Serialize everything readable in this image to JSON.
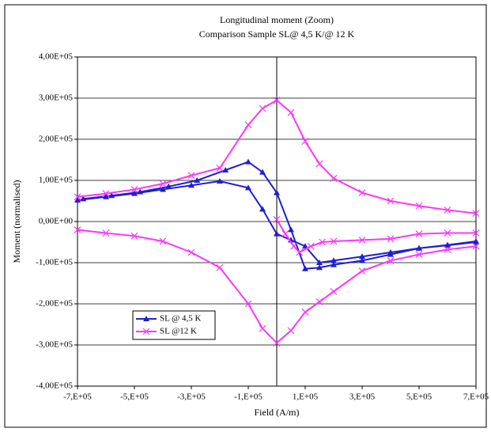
{
  "chart_data": {
    "type": "line",
    "title": "Longitudinal moment (Zoom)",
    "subtitle": "Comparison Sample SL@ 4,5 K/@ 12 K",
    "x_label": "Field (A/m)",
    "y_label": "Moment (normalised)",
    "xlim": [
      -700000,
      700000
    ],
    "ylim": [
      -400000,
      400000
    ],
    "xticks": [
      {
        "value": -700000,
        "label": "-7,E+05"
      },
      {
        "value": -500000,
        "label": "-5,E+05"
      },
      {
        "value": -300000,
        "label": "-3,E+05"
      },
      {
        "value": -100000,
        "label": "-1,E+05"
      },
      {
        "value": 100000,
        "label": "1,E+05"
      },
      {
        "value": 300000,
        "label": "3,E+05"
      },
      {
        "value": 500000,
        "label": "5,E+05"
      },
      {
        "value": 700000,
        "label": "7,E+05"
      }
    ],
    "yticks": [
      {
        "value": 400000,
        "label": "4,00E+05"
      },
      {
        "value": 300000,
        "label": "3,00E+05"
      },
      {
        "value": 200000,
        "label": "2,00E+05"
      },
      {
        "value": 100000,
        "label": "1,00E+05"
      },
      {
        "value": 0,
        "label": "0,00E+00"
      },
      {
        "value": -100000,
        "label": "-1,00E+05"
      },
      {
        "value": -200000,
        "label": "-2,00E+05"
      },
      {
        "value": -300000,
        "label": "-3,00E+05"
      },
      {
        "value": -400000,
        "label": "-4,00E+05"
      }
    ],
    "grid": true,
    "legend": "lower-left",
    "series": [
      {
        "name": "SL @ 4,5 K",
        "color": "#1f1fd0",
        "marker": "triangle",
        "x": [
          -680000,
          -580000,
          -480000,
          -380000,
          -280000,
          -180000,
          -100000,
          -50000,
          0,
          50000,
          100000,
          150000,
          200000,
          300000,
          400000,
          500000,
          600000,
          700000,
          null,
          -700000,
          -600000,
          -500000,
          -400000,
          -300000,
          -200000,
          -100000,
          -50000,
          0,
          50000,
          100000,
          150000,
          200000,
          300000,
          400000,
          500000,
          600000,
          700000
        ],
        "values": [
          55000,
          63000,
          72000,
          85000,
          100000,
          125000,
          145000,
          120000,
          70000,
          -20000,
          -115000,
          -112000,
          -105000,
          -95000,
          -80000,
          -65000,
          -58000,
          -50000,
          null,
          52000,
          60000,
          68000,
          78000,
          88000,
          98000,
          82000,
          30000,
          -30000,
          -45000,
          -60000,
          -100000,
          -95000,
          -85000,
          -75000,
          -65000,
          -57000,
          -48000
        ]
      },
      {
        "name": "SL @12 K",
        "color": "#ff33ff",
        "marker": "cross",
        "x": [
          -700000,
          -600000,
          -500000,
          -400000,
          -300000,
          -200000,
          -100000,
          -50000,
          0,
          50000,
          100000,
          150000,
          200000,
          300000,
          400000,
          500000,
          600000,
          700000,
          null,
          -700000,
          -600000,
          -500000,
          -400000,
          -300000,
          -200000,
          -100000,
          -50000,
          0,
          50000,
          100000,
          150000,
          200000,
          300000,
          400000,
          500000,
          600000,
          700000,
          null,
          0,
          30000,
          60000,
          80000,
          120000,
          160000,
          200000,
          300000,
          400000,
          500000,
          600000,
          700000
        ],
        "values": [
          60000,
          68000,
          78000,
          92000,
          112000,
          130000,
          235000,
          275000,
          295000,
          265000,
          195000,
          140000,
          105000,
          70000,
          50000,
          38000,
          28000,
          20000,
          null,
          -20000,
          -28000,
          -35000,
          -48000,
          -75000,
          -112000,
          -200000,
          -260000,
          -295000,
          -265000,
          -220000,
          -195000,
          -170000,
          -120000,
          -95000,
          -80000,
          -68000,
          -60000,
          null,
          5000,
          -30000,
          -60000,
          -75000,
          -60000,
          -50000,
          -48000,
          -45000,
          -42000,
          -30000,
          -28000,
          -28000
        ]
      }
    ]
  }
}
